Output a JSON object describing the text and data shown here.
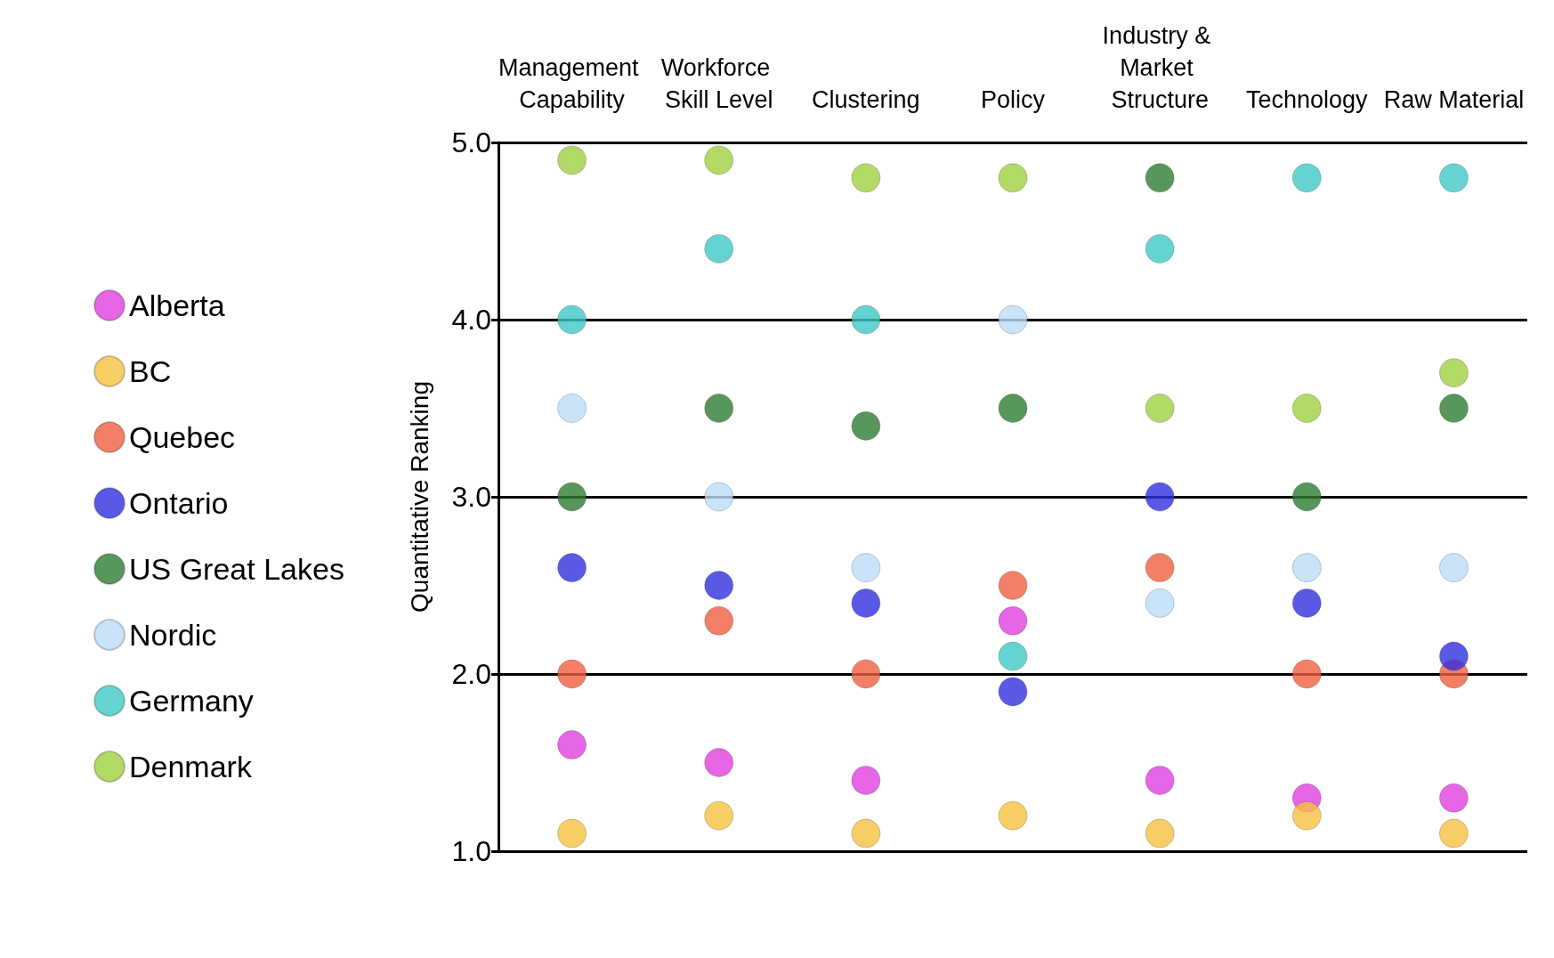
{
  "chart_data": {
    "type": "scatter",
    "ylabel": "Quantitative Ranking",
    "categories": [
      "Management Capability",
      "Workforce Skill Level",
      "Clustering",
      "Policy",
      "Industry & Market Structure",
      "Technology",
      "Raw Material"
    ],
    "series": [
      {
        "name": "Alberta",
        "color": "#e040e0",
        "values": [
          1.6,
          1.5,
          1.4,
          2.3,
          1.4,
          1.3,
          1.3
        ]
      },
      {
        "name": "BC",
        "color": "#f5c040",
        "values": [
          1.1,
          1.2,
          1.1,
          1.2,
          1.1,
          1.2,
          1.1
        ]
      },
      {
        "name": "Quebec",
        "color": "#f06040",
        "values": [
          2.0,
          2.3,
          2.0,
          2.5,
          2.6,
          2.0,
          2.0
        ]
      },
      {
        "name": "Ontario",
        "color": "#3030e0",
        "values": [
          2.6,
          2.5,
          2.4,
          1.9,
          3.0,
          2.4,
          2.1
        ]
      },
      {
        "name": "US Great Lakes",
        "color": "#2e7d32",
        "values": [
          3.0,
          3.5,
          3.4,
          3.5,
          4.8,
          3.0,
          3.5
        ]
      },
      {
        "name": "Nordic",
        "color": "#bcdcf8",
        "values": [
          3.5,
          3.0,
          2.6,
          4.0,
          2.4,
          2.6,
          2.6
        ]
      },
      {
        "name": "Germany",
        "color": "#40c8c8",
        "values": [
          4.0,
          4.4,
          4.0,
          2.1,
          4.4,
          4.8,
          4.8
        ]
      },
      {
        "name": "Denmark",
        "color": "#a0d040",
        "values": [
          4.9,
          4.9,
          4.8,
          4.8,
          3.5,
          3.5,
          3.7
        ]
      }
    ],
    "ylim": [
      1,
      5
    ],
    "yticks": [
      {
        "value": 1,
        "label": "1.0"
      },
      {
        "value": 2,
        "label": "2.0"
      },
      {
        "value": 3,
        "label": "3.0"
      },
      {
        "value": 4,
        "label": "4.0"
      },
      {
        "value": 5,
        "label": "5.0"
      }
    ],
    "grid": "y",
    "legend": "left",
    "marker": "circle"
  }
}
